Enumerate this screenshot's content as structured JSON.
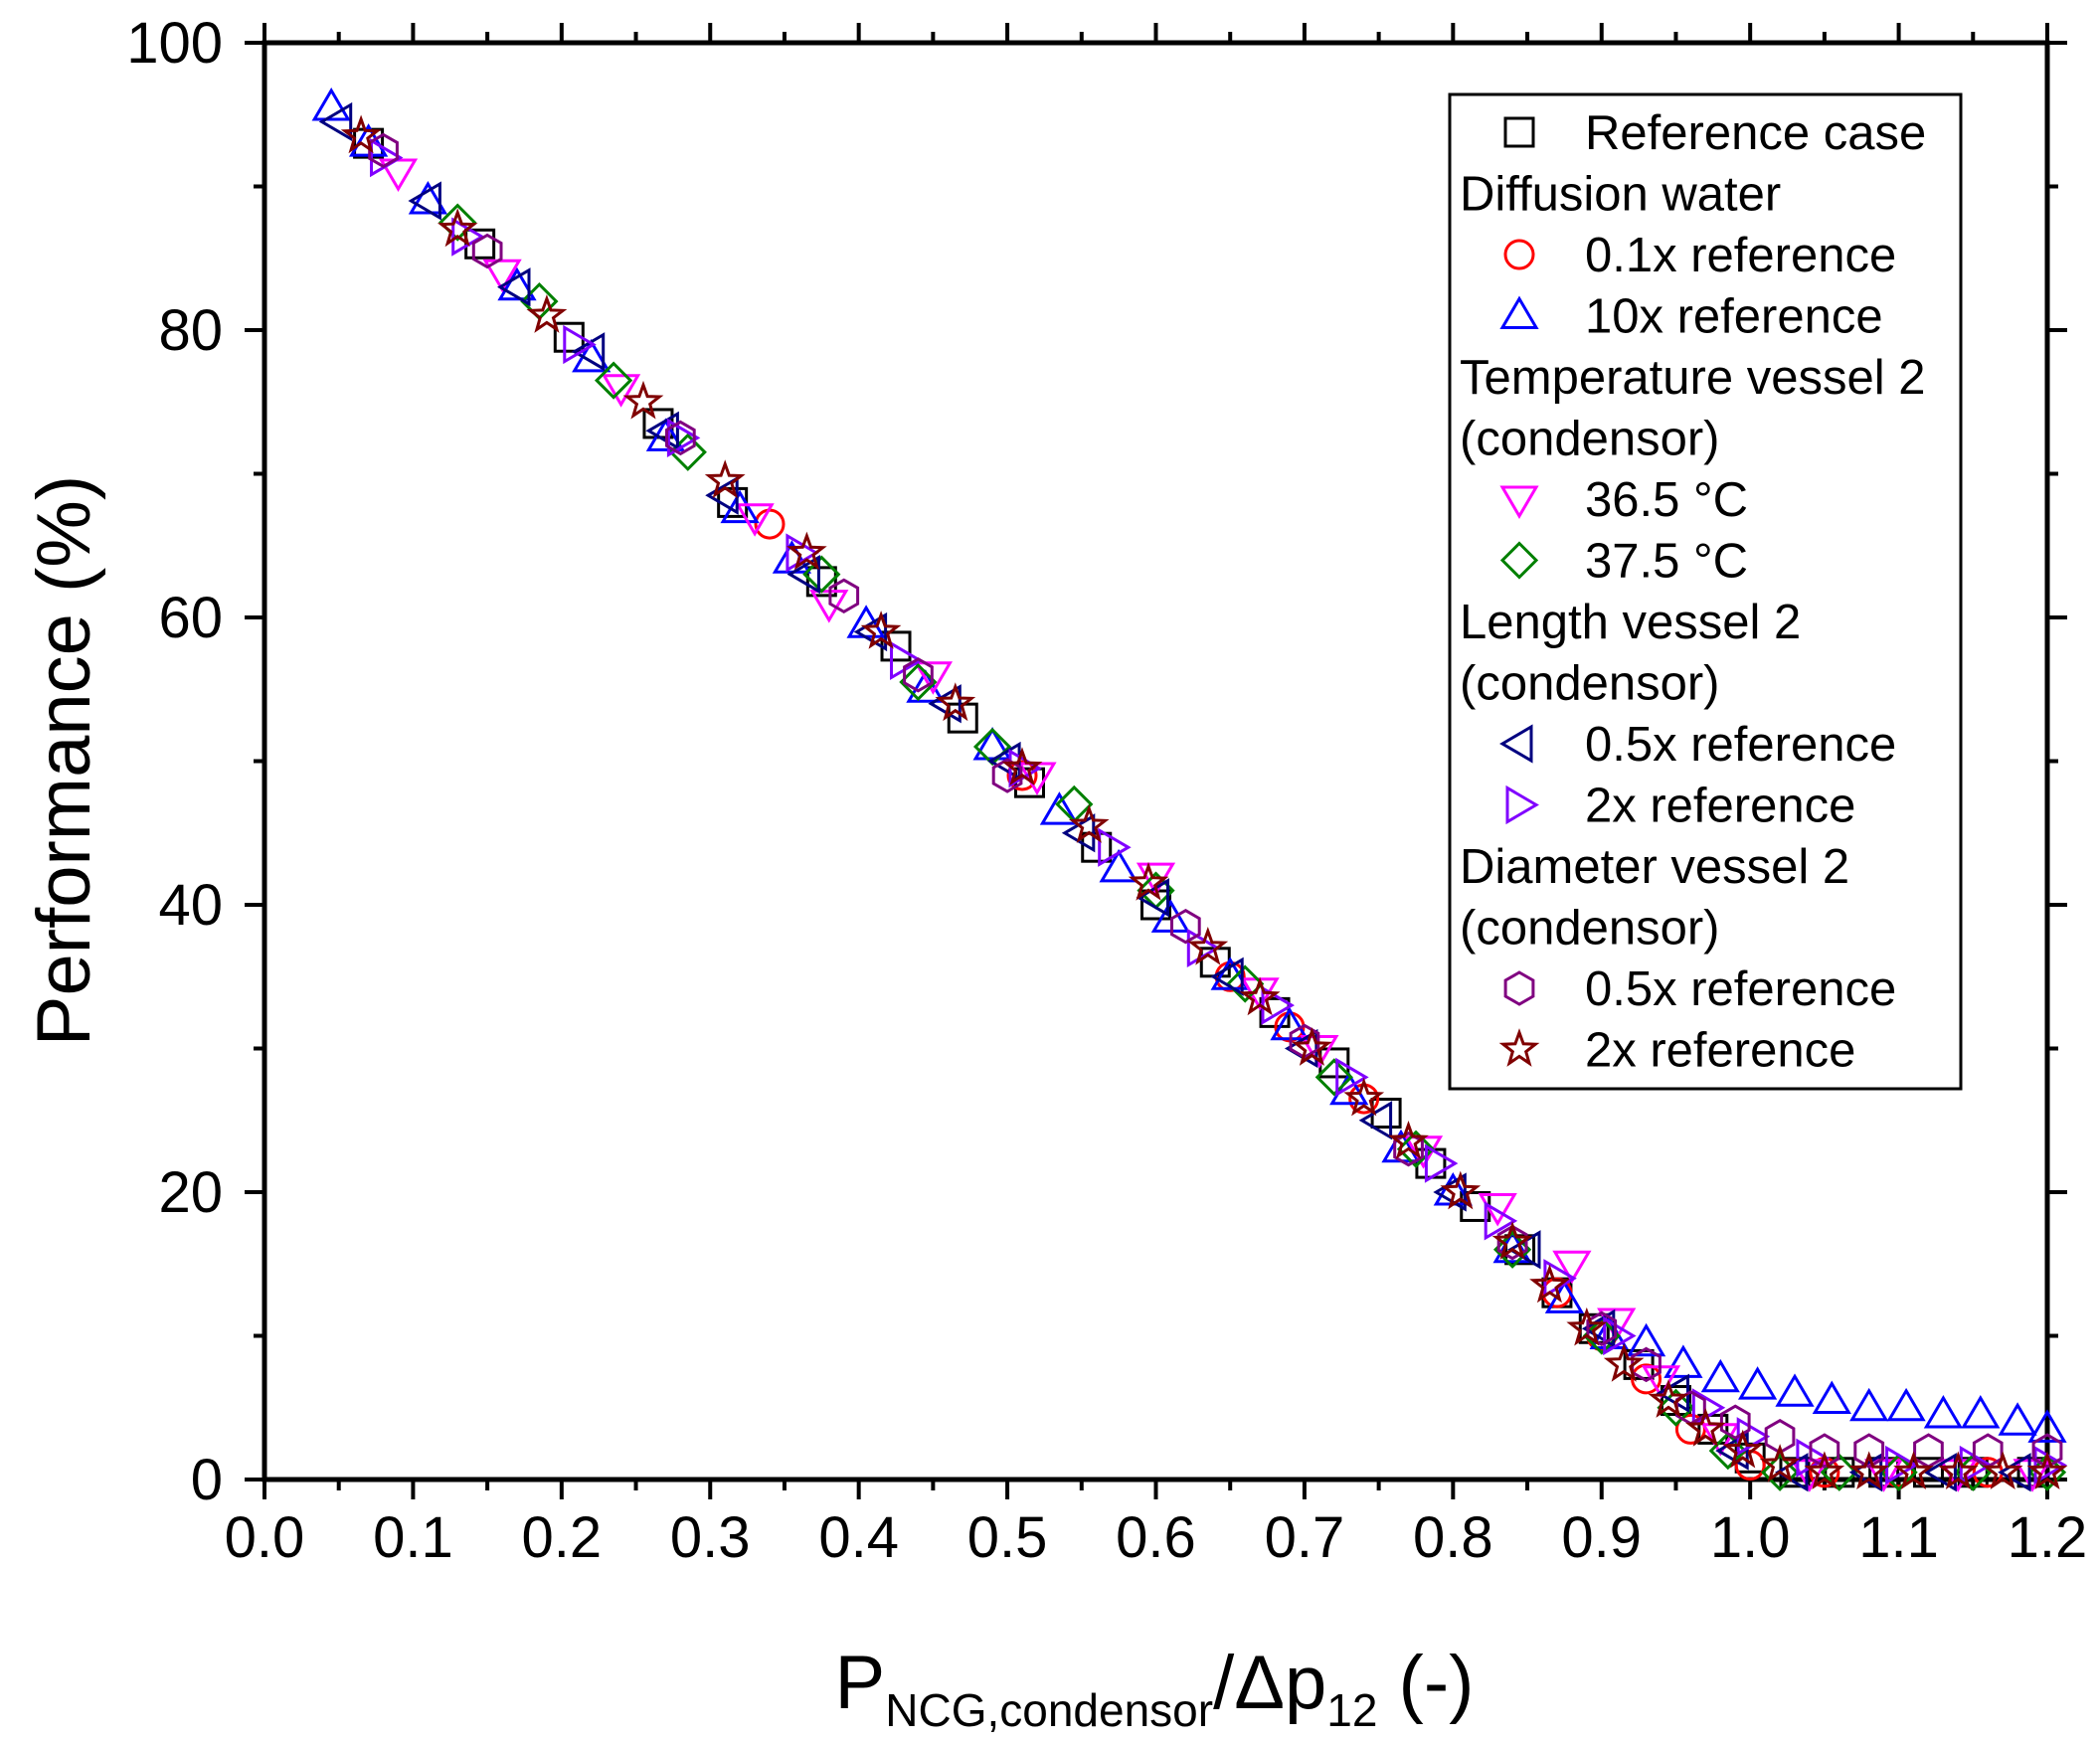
{
  "chart_data": {
    "type": "scatter",
    "title": "",
    "xlabel": {
      "main": "P",
      "sub": "NCG,condensor",
      "rest": "/Δp",
      "sub2": "12",
      "tail": " (-)"
    },
    "ylabel": "Performance (%)",
    "xlim": [
      0.0,
      1.2
    ],
    "ylim": [
      0,
      100
    ],
    "xticks": [
      "0.0",
      "0.1",
      "0.2",
      "0.3",
      "0.4",
      "0.5",
      "0.6",
      "0.7",
      "0.8",
      "0.9",
      "1.0",
      "1.1",
      "1.2"
    ],
    "yticks": [
      "0",
      "20",
      "40",
      "60",
      "80",
      "100"
    ],
    "grid": false,
    "legend_position": "top-right",
    "legend": [
      {
        "kind": "entry",
        "series": 0,
        "label": "Reference case"
      },
      {
        "kind": "header",
        "label": "Diffusion water"
      },
      {
        "kind": "entry",
        "series": 1,
        "label": "0.1x reference"
      },
      {
        "kind": "entry",
        "series": 2,
        "label": "10x reference"
      },
      {
        "kind": "header",
        "label": "Temperature vessel 2"
      },
      {
        "kind": "header",
        "label": "(condensor)"
      },
      {
        "kind": "entry",
        "series": 3,
        "label": "36.5 °C"
      },
      {
        "kind": "entry",
        "series": 4,
        "label": "37.5 °C"
      },
      {
        "kind": "header",
        "label": "Length vessel 2"
      },
      {
        "kind": "header",
        "label": "(condensor)"
      },
      {
        "kind": "entry",
        "series": 5,
        "label": "0.5x reference"
      },
      {
        "kind": "entry",
        "series": 6,
        "label": "2x reference"
      },
      {
        "kind": "header",
        "label": "Diameter vessel 2"
      },
      {
        "kind": "header",
        "label": "(condensor)"
      },
      {
        "kind": "entry",
        "series": 7,
        "label": "0.5x reference"
      },
      {
        "kind": "entry",
        "series": 8,
        "label": "2x reference"
      }
    ],
    "series": [
      {
        "name": "Reference case",
        "marker": "square",
        "color": "#000000",
        "x": [
          0.07,
          0.145,
          0.205,
          0.265,
          0.315,
          0.375,
          0.425,
          0.47,
          0.515,
          0.56,
          0.6,
          0.64,
          0.68,
          0.72,
          0.755,
          0.785,
          0.815,
          0.845,
          0.87,
          0.895,
          0.925,
          0.95,
          0.975,
          1.0,
          1.03,
          1.06,
          1.09,
          1.12,
          1.15,
          1.19
        ],
        "y": [
          93,
          86,
          79.5,
          73.5,
          68,
          62.5,
          58,
          53,
          48.5,
          44,
          40,
          36,
          32.5,
          29,
          25.5,
          22,
          19,
          16,
          13,
          10.5,
          8,
          5.5,
          3.5,
          1.5,
          0.5,
          0.5,
          0.5,
          0.5,
          0.5,
          0.5
        ]
      },
      {
        "name": "Diffusion water 0.1x reference",
        "marker": "circle",
        "color": "#ff0000",
        "x": [
          0.34,
          0.51,
          0.65,
          0.69,
          0.74,
          0.87,
          0.9,
          0.93,
          0.96,
          1.0,
          1.05,
          1.1,
          1.16
        ],
        "y": [
          66.5,
          49,
          35,
          31.5,
          26.5,
          13,
          10,
          7,
          3.5,
          1,
          0.5,
          0.5,
          0.5
        ]
      },
      {
        "name": "Diffusion water 10x reference",
        "marker": "triangle-up",
        "color": "#0000ff",
        "x": [
          0.045,
          0.07,
          0.11,
          0.17,
          0.22,
          0.27,
          0.32,
          0.355,
          0.405,
          0.445,
          0.49,
          0.535,
          0.575,
          0.61,
          0.65,
          0.69,
          0.73,
          0.765,
          0.8,
          0.84,
          0.875,
          0.905,
          0.93,
          0.955,
          0.98,
          1.005,
          1.03,
          1.055,
          1.08,
          1.105,
          1.13,
          1.155,
          1.18,
          1.2
        ],
        "y": [
          95.5,
          93,
          89,
          83,
          78,
          72.5,
          67.5,
          64,
          59.5,
          55,
          51,
          46.5,
          42.5,
          39,
          35,
          31.5,
          27,
          23,
          20,
          16,
          12.5,
          10,
          9.5,
          8,
          7,
          6.5,
          6,
          5.5,
          5,
          5,
          4.5,
          4.5,
          4,
          3.5
        ]
      },
      {
        "name": "Temperature vessel 2 (condensor) 36.5 °C",
        "marker": "triangle-down",
        "color": "#ff00ff",
        "x": [
          0.09,
          0.16,
          0.24,
          0.33,
          0.38,
          0.45,
          0.52,
          0.6,
          0.67,
          0.71,
          0.78,
          0.83,
          0.88,
          0.91,
          0.94,
          0.98,
          1.04,
          1.09,
          1.14,
          1.19
        ],
        "y": [
          91,
          84,
          76,
          67,
          61,
          56,
          49,
          42,
          34,
          30,
          23,
          19,
          15,
          11,
          7,
          3,
          0.5,
          0.5,
          0.5,
          0.5
        ]
      },
      {
        "name": "Temperature vessel 2 (condensor) 37.5 °C",
        "marker": "diamond",
        "color": "#008000",
        "x": [
          0.13,
          0.185,
          0.235,
          0.285,
          0.375,
          0.44,
          0.49,
          0.545,
          0.6,
          0.66,
          0.72,
          0.775,
          0.84,
          0.9,
          0.95,
          0.985,
          1.02,
          1.06,
          1.1,
          1.15,
          1.2
        ],
        "y": [
          87.5,
          82,
          76.5,
          71.5,
          63,
          55.5,
          51,
          47,
          41,
          34.5,
          28,
          23,
          16,
          10,
          5,
          2,
          0.5,
          0.5,
          0.5,
          0.5,
          0.5
        ]
      },
      {
        "name": "Length vessel 2 (condensor) 0.5x reference",
        "marker": "triangle-left",
        "color": "#000080",
        "x": [
          0.05,
          0.11,
          0.17,
          0.22,
          0.27,
          0.31,
          0.365,
          0.41,
          0.46,
          0.5,
          0.55,
          0.6,
          0.65,
          0.7,
          0.75,
          0.8,
          0.85,
          0.9,
          0.95,
          0.99,
          1.03,
          1.08,
          1.13,
          1.18
        ],
        "y": [
          94.5,
          89,
          83,
          78.5,
          73,
          68.5,
          63,
          59,
          54,
          50,
          45,
          40.5,
          35,
          30,
          25,
          20,
          16,
          10.5,
          6,
          2,
          0.5,
          0.5,
          0.5,
          0.5
        ]
      },
      {
        "name": "Length vessel 2 (condensor) 2x reference",
        "marker": "triangle-right",
        "color": "#8000ff",
        "x": [
          0.08,
          0.135,
          0.21,
          0.28,
          0.36,
          0.43,
          0.51,
          0.57,
          0.63,
          0.68,
          0.73,
          0.79,
          0.83,
          0.87,
          0.91,
          0.97,
          1.0,
          1.04,
          1.1,
          1.15,
          1.2
        ],
        "y": [
          92,
          86.5,
          79,
          72.5,
          64.5,
          57,
          49.5,
          44,
          37,
          33,
          28,
          22,
          18,
          14,
          10,
          5,
          3,
          1.5,
          1,
          1,
          1
        ]
      },
      {
        "name": "Diameter vessel 2 (condensor) 0.5x reference",
        "marker": "hexagon",
        "color": "#800080",
        "x": [
          0.08,
          0.15,
          0.28,
          0.39,
          0.44,
          0.5,
          0.62,
          0.7,
          0.77,
          0.84,
          0.9,
          0.93,
          0.96,
          0.99,
          1.02,
          1.05,
          1.08,
          1.12,
          1.16,
          1.2
        ],
        "y": [
          92.5,
          85.5,
          72.5,
          61.5,
          56,
          49,
          38.5,
          30.5,
          23,
          16.5,
          10.5,
          8,
          5,
          4,
          3,
          2,
          2,
          2,
          2,
          2
        ]
      },
      {
        "name": "Diameter vessel 2 (condensor) 2x reference",
        "marker": "star",
        "color": "#800000",
        "x": [
          0.065,
          0.13,
          0.19,
          0.255,
          0.31,
          0.365,
          0.415,
          0.465,
          0.51,
          0.555,
          0.595,
          0.635,
          0.67,
          0.705,
          0.74,
          0.77,
          0.805,
          0.84,
          0.865,
          0.89,
          0.915,
          0.945,
          0.97,
          0.995,
          1.02,
          1.05,
          1.08,
          1.11,
          1.14,
          1.17,
          1.2
        ],
        "y": [
          93.5,
          87,
          81,
          75,
          69.5,
          64.5,
          59,
          54,
          49.5,
          45.5,
          41.5,
          37,
          33.5,
          30,
          26.5,
          23.5,
          20,
          16.5,
          13.5,
          10.5,
          8,
          5.5,
          3.5,
          2,
          1,
          0.5,
          0.5,
          0.5,
          0.5,
          0.5,
          0.5
        ]
      }
    ]
  }
}
